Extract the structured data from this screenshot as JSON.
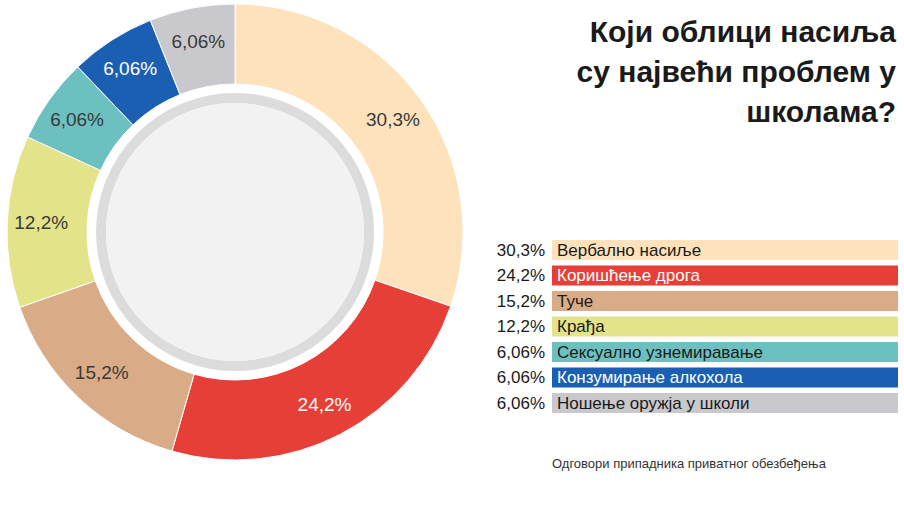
{
  "chart_data": {
    "type": "donut",
    "title": "Који облици насиља су највећи проблем у школама?",
    "categories": [
      "Вербално насиље",
      "Коришћење дрога",
      "Туче",
      "Крађа",
      "Сексуално узнемиравање",
      "Конзумирање алкохола",
      "Ношење оружја у школи"
    ],
    "values": [
      30.3,
      24.2,
      15.2,
      12.2,
      6.06,
      6.06,
      6.06
    ],
    "value_labels": [
      "30,3%",
      "24,2%",
      "15,2%",
      "12,2%",
      "6,06%",
      "6,06%",
      "6,06%"
    ],
    "colors": [
      "#fde2bb",
      "#e63f37",
      "#d9ab87",
      "#e3e38a",
      "#6cc1c0",
      "#1b5fb3",
      "#c9c9cd"
    ],
    "data_labels": true,
    "legend": "right",
    "source": "Одговори припадника приватног обезбеђења"
  }
}
